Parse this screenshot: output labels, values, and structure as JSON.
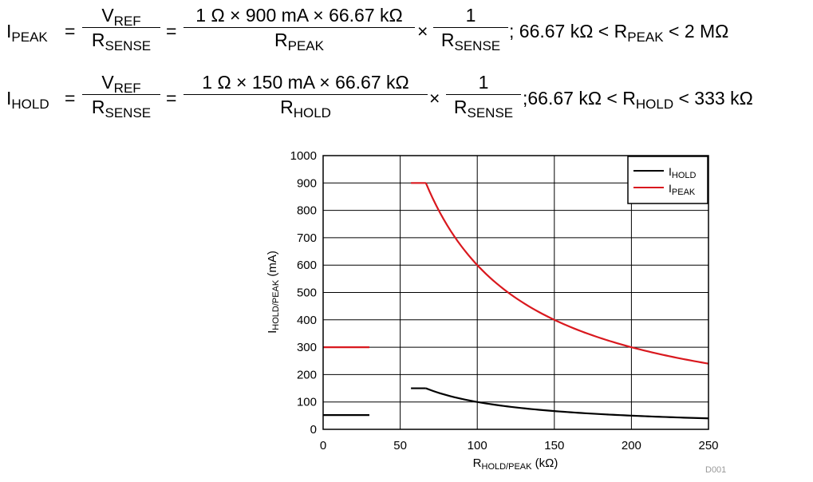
{
  "equations": {
    "peak": {
      "lhs_main": "I",
      "lhs_sub": "PEAK",
      "eq1": "=",
      "f1_num_main": "V",
      "f1_num_sub": "REF",
      "f1_den_main": "R",
      "f1_den_sub": "SENSE",
      "eq2": "=",
      "f2_num": "1 Ω × 900 mA × 66.67 kΩ",
      "f2_den_main": "R",
      "f2_den_sub": "PEAK",
      "times": "×",
      "f3_num": "1",
      "f3_den_main": "R",
      "f3_den_sub": "SENSE",
      "range_pre": "; 66.67 kΩ < R",
      "range_sub": "PEAK",
      "range_post": " < 2 MΩ"
    },
    "hold": {
      "lhs_main": "I",
      "lhs_sub": "HOLD",
      "eq1": "=",
      "f1_num_main": "V",
      "f1_num_sub": "REF",
      "f1_den_main": "R",
      "f1_den_sub": "SENSE",
      "eq2": "=",
      "f2_num": "1 Ω × 150 mA × 66.67 kΩ",
      "f2_den_main": "R",
      "f2_den_sub": "HOLD",
      "times": "×",
      "f3_num": "1",
      "f3_den_main": "R",
      "f3_den_sub": "SENSE",
      "range_pre": ";66.67 kΩ < R",
      "range_sub": "HOLD",
      "range_post": " < 333 kΩ"
    }
  },
  "chart_data": {
    "type": "line",
    "xlabel_main": "R",
    "xlabel_sub": "HOLD/PEAK",
    "xlabel_unit": " (kΩ)",
    "ylabel_main": "I",
    "ylabel_sub": "HOLD/PEAK",
    "ylabel_unit": "  (mA)",
    "xlim": [
      0,
      250
    ],
    "ylim": [
      0,
      1000
    ],
    "x_ticks": [
      0,
      50,
      100,
      150,
      200,
      250
    ],
    "y_ticks": [
      0,
      100,
      200,
      300,
      400,
      500,
      600,
      700,
      800,
      900,
      1000
    ],
    "grid": true,
    "legend_position": "top-right",
    "figure_id": "D001",
    "series": [
      {
        "name_main": "I",
        "name_sub": "HOLD",
        "color": "#000000",
        "segments": [
          {
            "kind": "points",
            "points": [
              [
                0,
                52
              ],
              [
                30,
                52
              ]
            ]
          },
          {
            "kind": "points",
            "points": [
              [
                57,
                150
              ],
              [
                66.67,
                150
              ]
            ]
          },
          {
            "kind": "inverse",
            "k": 10000.5,
            "x_from": 66.67,
            "x_to": 250
          }
        ]
      },
      {
        "name_main": "I",
        "name_sub": "PEAK",
        "color": "#d9181e",
        "segments": [
          {
            "kind": "points",
            "points": [
              [
                0,
                300
              ],
              [
                30,
                300
              ]
            ]
          },
          {
            "kind": "points",
            "points": [
              [
                57,
                900
              ],
              [
                66.67,
                900
              ]
            ]
          },
          {
            "kind": "inverse",
            "k": 60003,
            "x_from": 66.67,
            "x_to": 250
          }
        ]
      }
    ]
  }
}
